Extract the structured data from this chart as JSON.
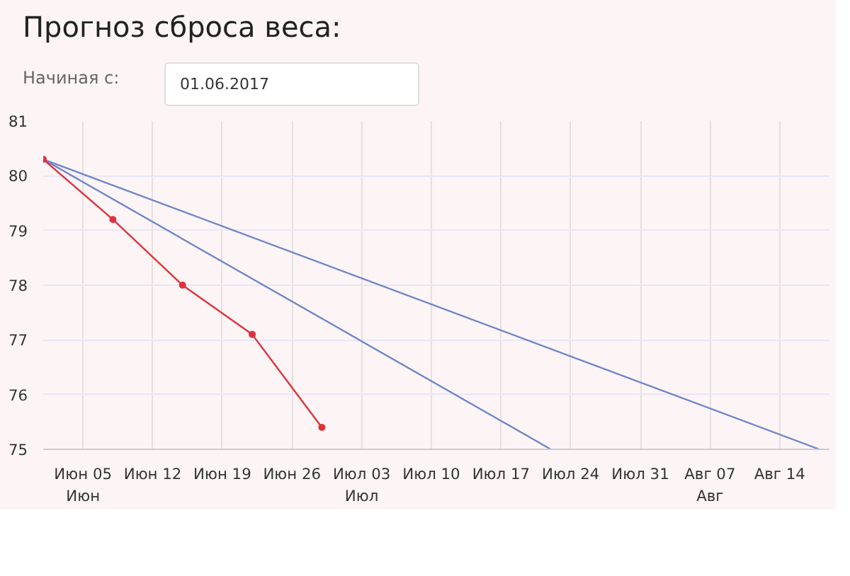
{
  "chart_data": {
    "type": "line",
    "title": "Прогноз сброса веса:",
    "annotations": [
      "Начиная с:",
      "01.06.2017"
    ],
    "xlim": [
      "2017-06-01",
      "2017-08-19"
    ],
    "xticks": [
      {
        "value": "2017-06-05",
        "label": "Июн 05\nИюн"
      },
      {
        "value": "2017-06-12",
        "label": "Июн 12"
      },
      {
        "value": "2017-06-19",
        "label": "Июн 19"
      },
      {
        "value": "2017-06-26",
        "label": "Июн 26"
      },
      {
        "value": "2017-07-03",
        "label": "Июл 03\nИюл"
      },
      {
        "value": "2017-07-10",
        "label": "Июл 10"
      },
      {
        "value": "2017-07-17",
        "label": "Июл 17"
      },
      {
        "value": "2017-07-24",
        "label": "Июл 24"
      },
      {
        "value": "2017-07-31",
        "label": "Июл 31"
      },
      {
        "value": "2017-08-07",
        "label": "Авг 07\nАвг"
      },
      {
        "value": "2017-08-14",
        "label": "Авг 14"
      }
    ],
    "ylim": [
      75,
      81
    ],
    "yticks": [
      75,
      76,
      77,
      78,
      79,
      80,
      81
    ],
    "grid": true,
    "series": [
      {
        "color": "#6f86cc",
        "marker": "none",
        "x": [
          "2017-06-01",
          "2017-08-18"
        ],
        "values": [
          80.3,
          75.0
        ]
      },
      {
        "color": "#6f86cc",
        "marker": "none",
        "x": [
          "2017-06-01",
          "2017-07-22"
        ],
        "values": [
          80.3,
          75.0
        ]
      },
      {
        "color": "#e0323c",
        "marker": "circle",
        "x": [
          "2017-06-01",
          "2017-06-08",
          "2017-06-15",
          "2017-06-22",
          "2017-06-29"
        ],
        "values": [
          80.3,
          79.2,
          78.0,
          77.1,
          75.4
        ]
      }
    ]
  }
}
